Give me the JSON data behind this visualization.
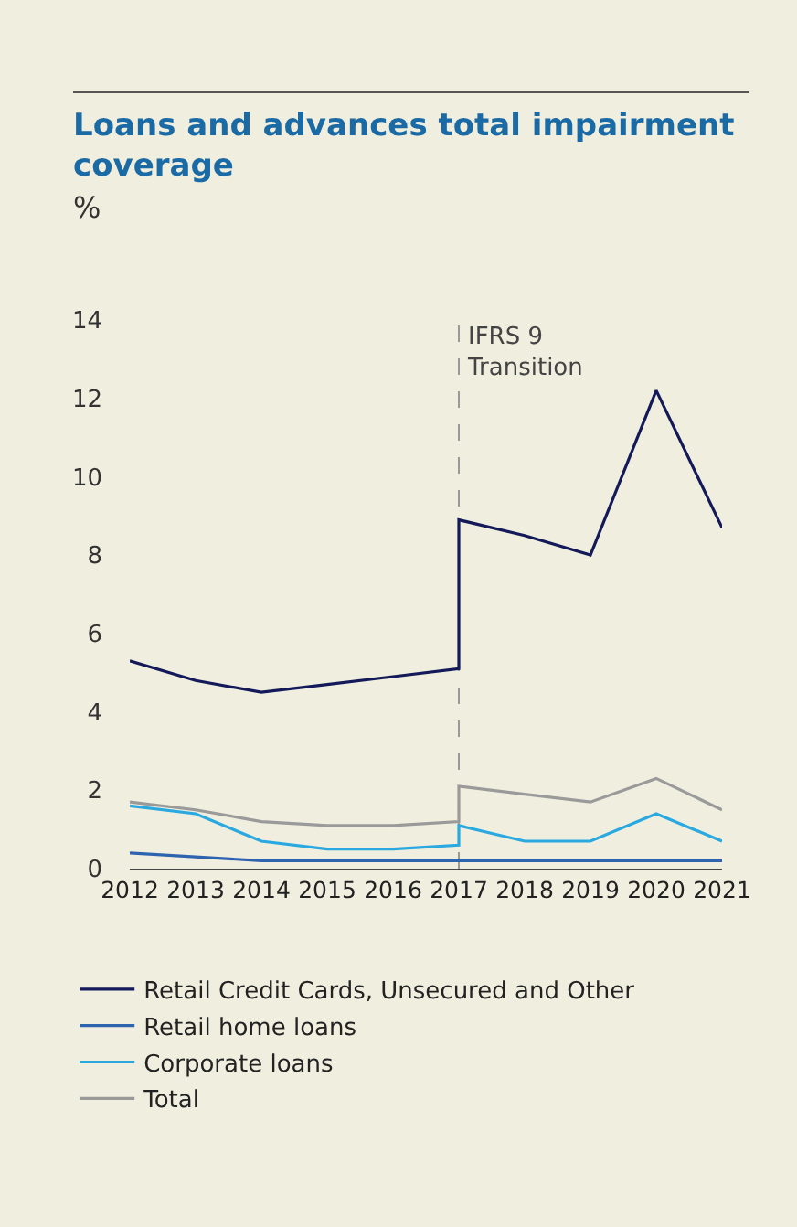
{
  "chart_data": {
    "type": "line",
    "title": "Loans and advances total impairment coverage",
    "ylabel": "%",
    "xlim": [
      2012,
      2021
    ],
    "xticks": [
      2012,
      2013,
      2014,
      2015,
      2016,
      2017,
      2018,
      2019,
      2020,
      2021
    ],
    "ylim": [
      0,
      14
    ],
    "yticks": [
      0,
      2,
      4,
      6,
      8,
      10,
      12,
      14
    ],
    "grid": false,
    "legend": "bottom",
    "marker": "none",
    "line_style": "solid",
    "series": [
      {
        "name": "Retail Credit Cards, Unsecured and Other",
        "color": "#14195a",
        "x": [
          2012,
          2013,
          2014,
          2015,
          2016,
          2017,
          2017,
          2018,
          2019,
          2020,
          2021
        ],
        "values": [
          5.3,
          4.8,
          4.5,
          4.7,
          4.9,
          5.1,
          8.9,
          8.5,
          8.0,
          12.2,
          8.7
        ]
      },
      {
        "name": "Retail home loans",
        "color": "#2e63b0",
        "x": [
          2012,
          2013,
          2014,
          2015,
          2016,
          2017,
          2017,
          2018,
          2019,
          2020,
          2021
        ],
        "values": [
          0.4,
          0.3,
          0.2,
          0.2,
          0.2,
          0.2,
          0.2,
          0.2,
          0.2,
          0.2,
          0.2
        ]
      },
      {
        "name": "Corporate loans",
        "color": "#29a9e0",
        "x": [
          2012,
          2013,
          2014,
          2015,
          2016,
          2017,
          2017,
          2018,
          2019,
          2020,
          2021
        ],
        "values": [
          1.6,
          1.4,
          0.7,
          0.5,
          0.5,
          0.6,
          1.1,
          0.7,
          0.7,
          1.4,
          0.7
        ]
      },
      {
        "name": "Total",
        "color": "#9a9a9a",
        "x": [
          2012,
          2013,
          2014,
          2015,
          2016,
          2017,
          2017,
          2018,
          2019,
          2020,
          2021
        ],
        "values": [
          1.7,
          1.5,
          1.2,
          1.1,
          1.1,
          1.2,
          2.1,
          1.9,
          1.7,
          2.3,
          1.5
        ]
      }
    ],
    "ref_lines": [
      {
        "axis": "x",
        "value": 2017,
        "label": "IFRS 9\nTransition",
        "color": "#999999",
        "line_style": "dashed"
      }
    ]
  }
}
